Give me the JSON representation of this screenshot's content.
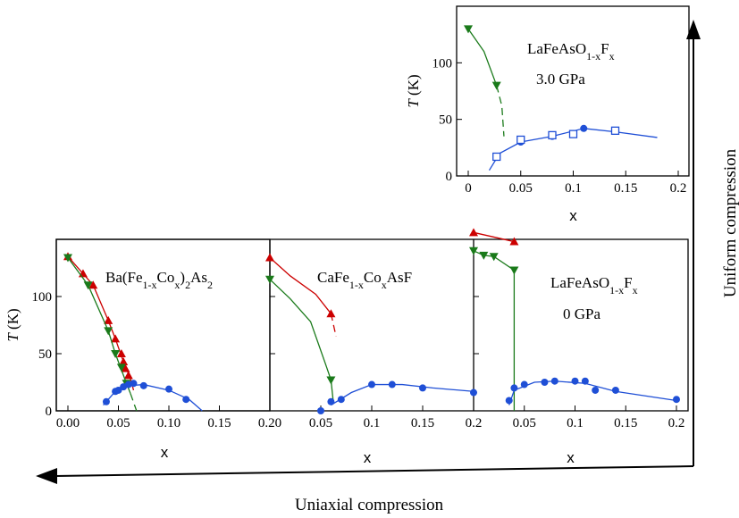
{
  "colors": {
    "red": "#cc0000",
    "green": "#1a7a1a",
    "blue": "#1f4fd6",
    "axis": "#000000"
  },
  "labels": {
    "uniform_compression": "Uniform compression",
    "uniaxial_compression": "Uniaxial compression"
  },
  "chart_data": [
    {
      "id": "lafeaso-3gpa",
      "type": "scatter",
      "title": "LaFeAsO1-xFx",
      "subtitle": "3.0 GPa",
      "xlabel": "x",
      "ylabel": "T (K)",
      "xlim": [
        0,
        0.2
      ],
      "ylim": [
        0,
        150
      ],
      "xticks": [
        0,
        0.05,
        0.1,
        0.15,
        0.2
      ],
      "xticklabels": [
        "0",
        "0.05",
        "0.1",
        "0.15",
        "0.2"
      ],
      "yticks": [
        0,
        50,
        100
      ],
      "yticklabels": [
        "0",
        "50",
        "100"
      ],
      "series": [
        {
          "marker": "triangle-down",
          "color": "green",
          "points": [
            [
              0.0,
              130
            ],
            [
              0.027,
              80
            ]
          ],
          "line": [
            [
              0.0,
              130
            ],
            [
              0.015,
              110
            ],
            [
              0.027,
              80
            ]
          ],
          "dashed": [
            [
              0.027,
              80
            ],
            [
              0.032,
              62
            ],
            [
              0.034,
              35
            ]
          ]
        },
        {
          "marker": "circle",
          "color": "blue",
          "points": [
            [
              0.05,
              30
            ],
            [
              0.08,
              35
            ],
            [
              0.11,
              42
            ],
            [
              0.14,
              40
            ]
          ],
          "line": [
            [
              0.02,
              5
            ],
            [
              0.03,
              20
            ],
            [
              0.05,
              30
            ],
            [
              0.08,
              35
            ],
            [
              0.11,
              42
            ],
            [
              0.14,
              39
            ],
            [
              0.18,
              34
            ]
          ]
        },
        {
          "marker": "square-open",
          "color": "blue",
          "points": [
            [
              0.027,
              17
            ],
            [
              0.05,
              32
            ],
            [
              0.08,
              36
            ],
            [
              0.1,
              37
            ],
            [
              0.14,
              40
            ]
          ]
        }
      ]
    },
    {
      "id": "bafeco",
      "type": "scatter",
      "title": "Ba(Fe1-xCox)2As2",
      "xlabel": "x",
      "ylabel": "T (K)",
      "xlim": [
        0,
        0.2
      ],
      "ylim": [
        0,
        150
      ],
      "xticks": [
        0,
        0.05,
        0.1,
        0.15,
        0.2
      ],
      "xticklabels": [
        "0.00",
        "0.05",
        "0.10",
        "0.15",
        "0.20"
      ],
      "yticks": [
        0,
        50,
        100
      ],
      "yticklabels": [
        "0",
        "50",
        "100"
      ],
      "series": [
        {
          "marker": "triangle-up",
          "color": "red",
          "points": [
            [
              0.0,
              135
            ],
            [
              0.015,
              120
            ],
            [
              0.025,
              110
            ],
            [
              0.04,
              79
            ],
            [
              0.047,
              63
            ],
            [
              0.053,
              50
            ],
            [
              0.055,
              43
            ],
            [
              0.057,
              37
            ],
            [
              0.06,
              31
            ]
          ],
          "line": [
            [
              0.0,
              135
            ],
            [
              0.015,
              120
            ],
            [
              0.025,
              110
            ],
            [
              0.04,
              79
            ],
            [
              0.047,
              63
            ],
            [
              0.055,
              43
            ],
            [
              0.062,
              28
            ],
            [
              0.065,
              18
            ]
          ]
        },
        {
          "marker": "triangle-down",
          "color": "green",
          "points": [
            [
              0.0,
              134
            ],
            [
              0.02,
              110
            ],
            [
              0.04,
              70
            ],
            [
              0.047,
              50
            ],
            [
              0.053,
              38
            ],
            [
              0.058,
              24
            ]
          ],
          "line": [
            [
              0.0,
              134
            ],
            [
              0.02,
              110
            ],
            [
              0.04,
              70
            ],
            [
              0.047,
              50
            ],
            [
              0.058,
              24
            ],
            [
              0.062,
              15
            ]
          ],
          "dashed": [
            [
              0.062,
              15
            ],
            [
              0.066,
              5
            ],
            [
              0.068,
              0
            ]
          ]
        },
        {
          "marker": "circle",
          "color": "blue",
          "points": [
            [
              0.038,
              8
            ],
            [
              0.047,
              17
            ],
            [
              0.05,
              18
            ],
            [
              0.055,
              21
            ],
            [
              0.06,
              23
            ],
            [
              0.065,
              24
            ],
            [
              0.075,
              22
            ],
            [
              0.1,
              19
            ],
            [
              0.117,
              10
            ]
          ],
          "line": [
            [
              0.035,
              5
            ],
            [
              0.045,
              15
            ],
            [
              0.06,
              22
            ],
            [
              0.075,
              23
            ],
            [
              0.1,
              18
            ],
            [
              0.12,
              10
            ],
            [
              0.133,
              0
            ]
          ]
        }
      ]
    },
    {
      "id": "cafeco",
      "type": "scatter",
      "title": "CaFe1-xCoxAsF",
      "xlabel": "x",
      "xlim": [
        0,
        0.2
      ],
      "ylim": [
        0,
        150
      ],
      "xticks": [
        0,
        0.05,
        0.1,
        0.15,
        0.2
      ],
      "xticklabels": [
        "",
        "0.05",
        "0.1",
        "0.15",
        "0.2"
      ],
      "series": [
        {
          "marker": "triangle-up",
          "color": "red",
          "points": [
            [
              0.0,
              134
            ],
            [
              0.06,
              85
            ]
          ],
          "line": [
            [
              0.0,
              134
            ],
            [
              0.02,
              118
            ],
            [
              0.045,
              102
            ],
            [
              0.06,
              85
            ]
          ],
          "dashed": [
            [
              0.06,
              85
            ],
            [
              0.065,
              65
            ]
          ]
        },
        {
          "marker": "triangle-down",
          "color": "green",
          "points": [
            [
              0.0,
              115
            ],
            [
              0.06,
              27
            ]
          ],
          "line": [
            [
              0.0,
              115
            ],
            [
              0.02,
              98
            ],
            [
              0.04,
              78
            ],
            [
              0.055,
              40
            ],
            [
              0.06,
              27
            ],
            [
              0.062,
              10
            ]
          ]
        },
        {
          "marker": "circle",
          "color": "blue",
          "points": [
            [
              0.05,
              0
            ],
            [
              0.06,
              8
            ],
            [
              0.07,
              10
            ],
            [
              0.1,
              23
            ],
            [
              0.12,
              23
            ],
            [
              0.15,
              20
            ],
            [
              0.2,
              16
            ]
          ],
          "line": [
            [
              0.06,
              5
            ],
            [
              0.08,
              16
            ],
            [
              0.1,
              23
            ],
            [
              0.13,
              23
            ],
            [
              0.16,
              20
            ],
            [
              0.2,
              17
            ]
          ]
        }
      ]
    },
    {
      "id": "lafeaso-0gpa",
      "type": "scatter",
      "title": "LaFeAsO1-xFx",
      "subtitle": "0 GPa",
      "xlabel": "x",
      "xlim": [
        0,
        0.2
      ],
      "ylim": [
        0,
        150
      ],
      "xticks": [
        0,
        0.05,
        0.1,
        0.15,
        0.2
      ],
      "xticklabels": [
        "",
        "0.05",
        "0.1",
        "0.15",
        "0.2"
      ],
      "series": [
        {
          "marker": "triangle-up",
          "color": "red",
          "points": [
            [
              0.0,
              156
            ],
            [
              0.04,
              148
            ]
          ],
          "line": [
            [
              0.0,
              156
            ],
            [
              0.04,
              148
            ]
          ]
        },
        {
          "marker": "triangle-down",
          "color": "green",
          "points": [
            [
              0.0,
              140
            ],
            [
              0.01,
              136
            ],
            [
              0.02,
              135
            ],
            [
              0.04,
              123
            ]
          ],
          "line": [
            [
              0.0,
              140
            ],
            [
              0.01,
              136
            ],
            [
              0.02,
              135
            ],
            [
              0.04,
              123
            ],
            [
              0.04,
              0
            ]
          ]
        },
        {
          "marker": "circle",
          "color": "blue",
          "points": [
            [
              0.035,
              9
            ],
            [
              0.04,
              20
            ],
            [
              0.05,
              23
            ],
            [
              0.07,
              25
            ],
            [
              0.08,
              26
            ],
            [
              0.1,
              26
            ],
            [
              0.11,
              26
            ],
            [
              0.12,
              18
            ],
            [
              0.14,
              18
            ],
            [
              0.2,
              10
            ]
          ],
          "line": [
            [
              0.035,
              5
            ],
            [
              0.04,
              18
            ],
            [
              0.06,
              25
            ],
            [
              0.08,
              26
            ],
            [
              0.11,
              24
            ],
            [
              0.14,
              17
            ],
            [
              0.2,
              9
            ]
          ]
        }
      ]
    }
  ]
}
